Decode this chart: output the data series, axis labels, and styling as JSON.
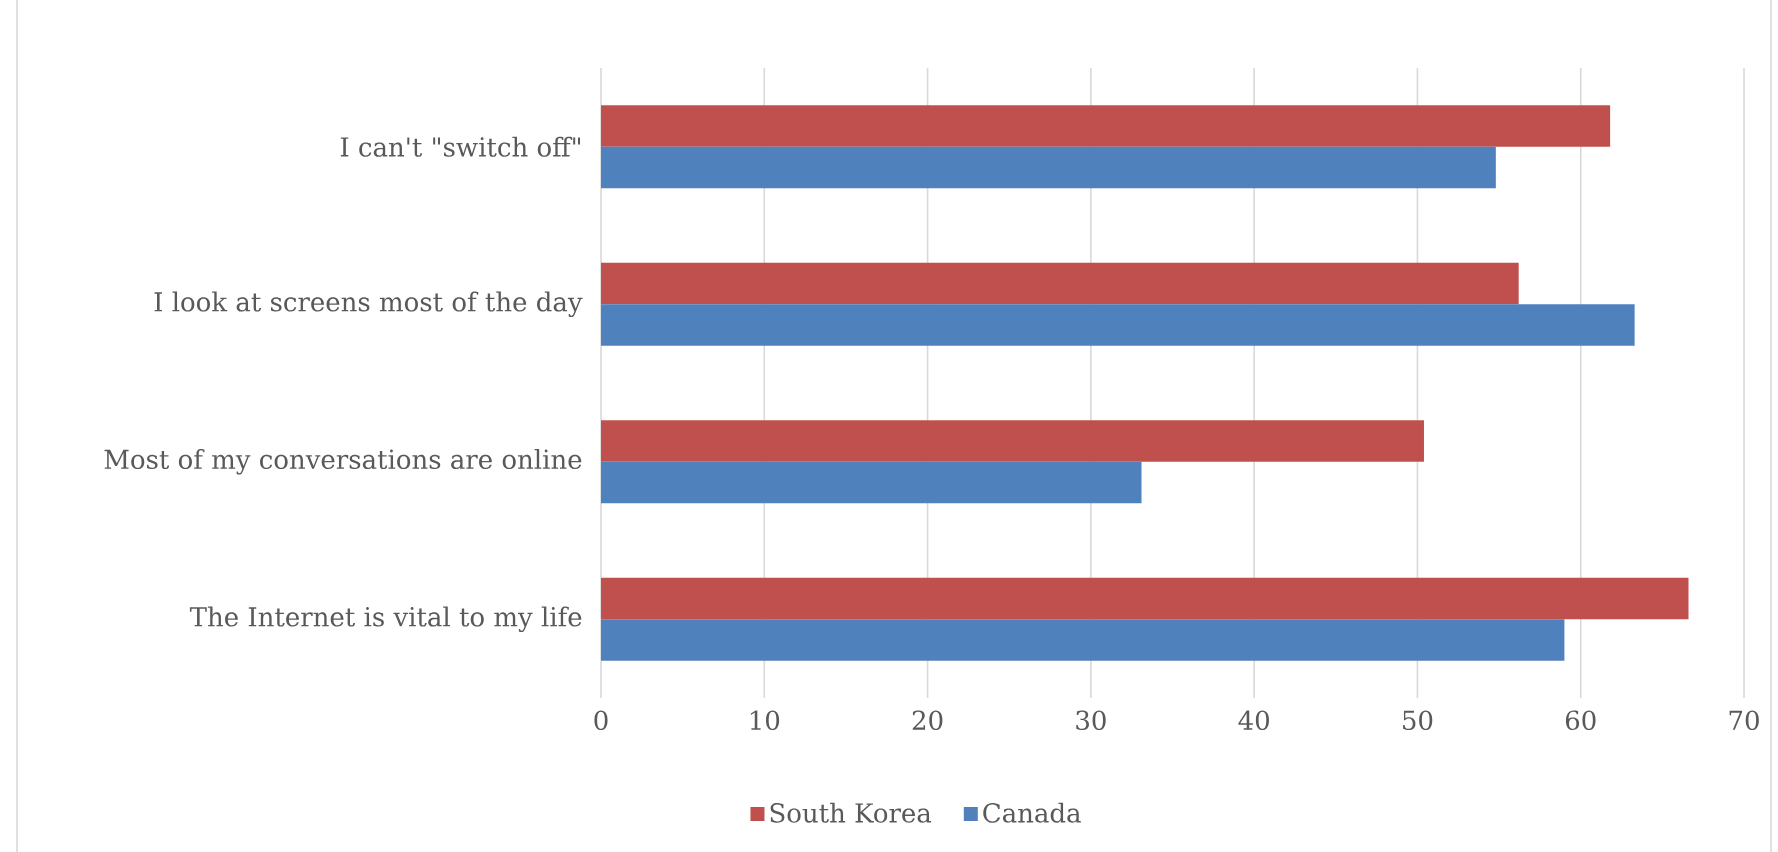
{
  "chart_data": {
    "type": "bar",
    "orientation": "horizontal",
    "categories": [
      "I can't \"switch off\"",
      "I look at screens most of the day",
      "Most of my conversations are online",
      "The Internet is vital to my life"
    ],
    "series": [
      {
        "name": "South Korea",
        "color": "#c0504d",
        "values": [
          61.8,
          56.2,
          50.4,
          66.6
        ]
      },
      {
        "name": "Canada",
        "color": "#4f81bd",
        "values": [
          54.8,
          63.3,
          33.1,
          59.0
        ]
      }
    ],
    "xlim": [
      0,
      70
    ],
    "xticks": [
      0,
      10,
      20,
      30,
      40,
      50,
      60,
      70
    ],
    "grid": "x",
    "legend": "bottom"
  }
}
